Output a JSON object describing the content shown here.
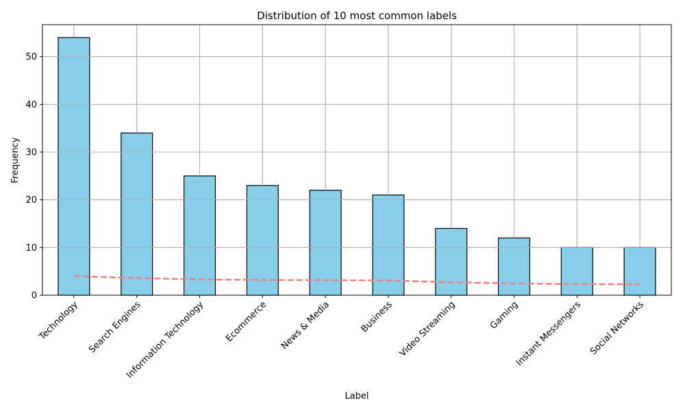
{
  "chart_data": {
    "type": "bar",
    "title": "Distribution of 10 most common labels",
    "xlabel": "Label",
    "ylabel": "Frequency",
    "categories": [
      "Technology",
      "Search Engines",
      "Information Technology",
      "Ecommerce",
      "News & Media",
      "Business",
      "Video Streaming",
      "Gaming",
      "Instant Messengers",
      "Social Networks"
    ],
    "values": [
      54,
      34,
      25,
      23,
      22,
      21,
      14,
      12,
      10,
      10
    ],
    "trend_values": [
      4.0,
      3.6,
      3.3,
      3.2,
      3.15,
      3.1,
      2.7,
      2.5,
      2.3,
      2.3
    ],
    "ylim": [
      0,
      56.7
    ],
    "yticks": [
      0,
      10,
      20,
      30,
      40,
      50
    ],
    "grid": true,
    "colors": {
      "bar_fill": "#87ceeb",
      "bar_stroke": "#000000",
      "trend": "#f08080",
      "grid": "#b0b0b0"
    }
  }
}
